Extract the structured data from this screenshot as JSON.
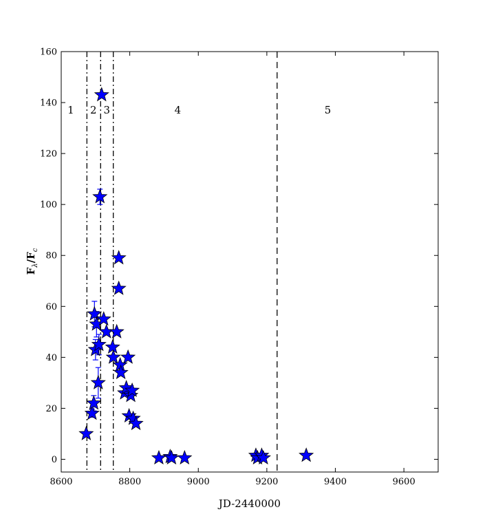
{
  "chart_data": {
    "type": "scatter",
    "xlabel": "JD-2440000",
    "ylabel": "F",
    "ylabel_sub_lambda": "λ",
    "ylabel_sub_c": "c",
    "xlim": [
      8600,
      9700
    ],
    "ylim": [
      -5,
      160
    ],
    "x_ticks": [
      8600,
      8800,
      9000,
      9200,
      9400,
      9600
    ],
    "y_ticks": [
      0,
      20,
      40,
      60,
      80,
      100,
      120,
      140,
      160
    ],
    "marker": "star",
    "marker_color": "#0000ff",
    "errorbar_color": "#0000ff",
    "grid": false,
    "vlines": [
      {
        "x": 8675,
        "style": "dashdot"
      },
      {
        "x": 8715,
        "style": "dashdot"
      },
      {
        "x": 8752,
        "style": "dashdot"
      },
      {
        "x": 9230,
        "style": "dashed"
      }
    ],
    "region_labels": [
      {
        "text": "1",
        "x": 8628,
        "y": 137
      },
      {
        "text": "2",
        "x": 8694,
        "y": 137
      },
      {
        "text": "3",
        "x": 8733,
        "y": 137
      },
      {
        "text": "4",
        "x": 8940,
        "y": 137
      },
      {
        "text": "5",
        "x": 9378,
        "y": 137
      }
    ],
    "points": [
      {
        "x": 8673,
        "y": 10,
        "err": 0
      },
      {
        "x": 8690,
        "y": 18,
        "err": 1.5
      },
      {
        "x": 8695,
        "y": 22,
        "err": 3
      },
      {
        "x": 8697,
        "y": 57,
        "err": 5
      },
      {
        "x": 8700,
        "y": 43,
        "err": 4
      },
      {
        "x": 8703,
        "y": 53,
        "err": 5
      },
      {
        "x": 8708,
        "y": 30,
        "err": 6
      },
      {
        "x": 8710,
        "y": 45,
        "err": 4
      },
      {
        "x": 8713,
        "y": 103,
        "err": 3
      },
      {
        "x": 8718,
        "y": 143,
        "err": 0
      },
      {
        "x": 8724,
        "y": 55,
        "err": 0
      },
      {
        "x": 8732,
        "y": 50,
        "err": 0
      },
      {
        "x": 8750,
        "y": 44,
        "err": 0
      },
      {
        "x": 8752,
        "y": 40,
        "err": 0
      },
      {
        "x": 8762,
        "y": 50,
        "err": 0
      },
      {
        "x": 8768,
        "y": 79,
        "err": 0
      },
      {
        "x": 8768,
        "y": 67,
        "err": 0
      },
      {
        "x": 8772,
        "y": 37,
        "err": 0
      },
      {
        "x": 8774,
        "y": 34,
        "err": 0
      },
      {
        "x": 8785,
        "y": 26,
        "err": 0
      },
      {
        "x": 8790,
        "y": 28,
        "err": 0
      },
      {
        "x": 8795,
        "y": 40,
        "err": 0
      },
      {
        "x": 8798,
        "y": 17,
        "err": 0
      },
      {
        "x": 8803,
        "y": 25,
        "err": 0
      },
      {
        "x": 8807,
        "y": 27,
        "err": 0
      },
      {
        "x": 8810,
        "y": 16,
        "err": 0
      },
      {
        "x": 8818,
        "y": 14,
        "err": 0
      },
      {
        "x": 8885,
        "y": 0.5,
        "err": 0
      },
      {
        "x": 8918,
        "y": 1,
        "err": 0
      },
      {
        "x": 8922,
        "y": 0.5,
        "err": 0
      },
      {
        "x": 8960,
        "y": 0.5,
        "err": 0
      },
      {
        "x": 9168,
        "y": 1.5,
        "err": 0
      },
      {
        "x": 9173,
        "y": 0.5,
        "err": 0
      },
      {
        "x": 9185,
        "y": 1.5,
        "err": 0
      },
      {
        "x": 9190,
        "y": 0.5,
        "err": 0
      },
      {
        "x": 9315,
        "y": 1.5,
        "err": 0
      }
    ]
  }
}
